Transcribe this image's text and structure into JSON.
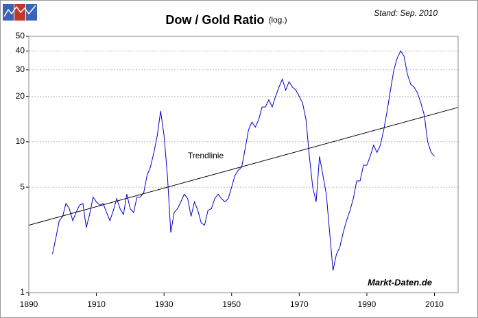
{
  "chart_data": {
    "type": "line",
    "title": "Dow / Gold Ratio",
    "subtitle": "(log.)",
    "annotations": {
      "date": "Stand: Sep. 2010",
      "source": "Markt-Daten.de"
    },
    "log_scale": true,
    "grid": true,
    "xlim": [
      1890,
      2017
    ],
    "xticks": [
      1890,
      1910,
      1930,
      1950,
      1970,
      1990,
      2010
    ],
    "ylim": [
      1,
      50
    ],
    "yticks": [
      1,
      5,
      10,
      20,
      30,
      40,
      50
    ],
    "series": [
      {
        "color": "#0000cc",
        "x": [
          1897,
          1898,
          1899,
          1900,
          1901,
          1902,
          1903,
          1904,
          1905,
          1906,
          1907,
          1908,
          1909,
          1910,
          1911,
          1912,
          1913,
          1914,
          1915,
          1916,
          1917,
          1918,
          1919,
          1920,
          1921,
          1922,
          1923,
          1924,
          1925,
          1926,
          1927,
          1928,
          1929,
          1930,
          1931,
          1932,
          1933,
          1934,
          1935,
          1936,
          1937,
          1938,
          1939,
          1940,
          1941,
          1942,
          1943,
          1944,
          1945,
          1946,
          1947,
          1948,
          1949,
          1950,
          1951,
          1952,
          1953,
          1954,
          1955,
          1956,
          1957,
          1958,
          1959,
          1960,
          1961,
          1962,
          1963,
          1964,
          1965,
          1966,
          1967,
          1968,
          1969,
          1970,
          1971,
          1972,
          1973,
          1974,
          1975,
          1976,
          1977,
          1978,
          1979,
          1980,
          1981,
          1982,
          1983,
          1984,
          1985,
          1986,
          1987,
          1988,
          1989,
          1990,
          1991,
          1992,
          1993,
          1994,
          1995,
          1996,
          1997,
          1998,
          1999,
          2000,
          2001,
          2002,
          2003,
          2004,
          2005,
          2006,
          2007,
          2008,
          2009,
          2010
        ],
        "values": [
          1.8,
          2.3,
          3.0,
          3.2,
          3.9,
          3.6,
          3.0,
          3.4,
          3.8,
          3.9,
          2.7,
          3.3,
          4.3,
          4.0,
          3.8,
          3.9,
          3.4,
          3.0,
          3.5,
          4.2,
          3.6,
          3.3,
          4.5,
          3.6,
          3.4,
          4.3,
          4.3,
          4.6,
          6.0,
          6.8,
          8.5,
          11,
          16,
          11,
          6,
          2.5,
          3.4,
          3.6,
          4.0,
          4.5,
          4.2,
          3.2,
          4.0,
          3.5,
          2.9,
          2.8,
          3.5,
          3.6,
          4.2,
          4.5,
          4.2,
          4.0,
          4.2,
          5.0,
          6.0,
          6.5,
          6.8,
          9.0,
          12,
          13.5,
          12.5,
          14,
          17,
          17,
          19,
          17,
          20,
          23,
          26,
          22,
          25,
          23,
          22,
          20,
          18,
          14,
          8,
          5,
          4,
          8,
          6,
          4.5,
          2.5,
          1.4,
          1.8,
          2.0,
          2.5,
          3,
          3.5,
          4.2,
          5.5,
          5.5,
          7,
          7,
          8,
          9.5,
          8.5,
          9.5,
          12,
          16,
          22,
          30,
          36,
          40,
          37,
          28,
          24,
          23,
          21,
          18,
          15,
          10,
          8.5,
          8.0
        ]
      },
      {
        "name": "Trendlinie",
        "color": "#000000",
        "x": [
          1890,
          2017
        ],
        "values": [
          2.8,
          16.9
        ]
      }
    ]
  }
}
